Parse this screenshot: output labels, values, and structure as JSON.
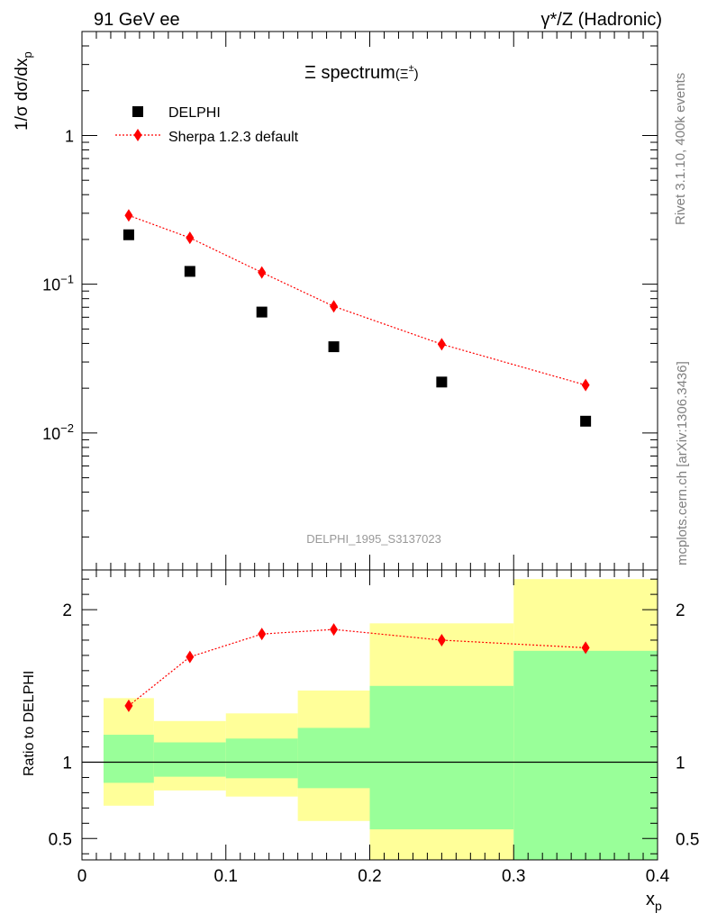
{
  "header": {
    "left": "91 GeV ee",
    "right": "γ*/Z (Hadronic)"
  },
  "side_labels": {
    "rivet": "Rivet 3.1.10,  400k events",
    "mcplots": "mcplots.cern.ch [arXiv:1306.3436]"
  },
  "chart_data": [
    {
      "type": "scatter",
      "title": "Ξ spectrum(Ξ±)",
      "title_main": "Ξ spectrum",
      "title_sub": "(Ξ",
      "title_sup": "±",
      "title_close": ")",
      "ylabel": "1/σ dσ/dx",
      "ylabel_sub": "p",
      "xlabel": "",
      "yscale": "log",
      "ylim": [
        0.0012,
        5
      ],
      "xlim": [
        0,
        0.4
      ],
      "ytick_labels": [
        {
          "value": 1,
          "base": "1",
          "exp": ""
        },
        {
          "value": 0.1,
          "base": "10",
          "exp": "−1"
        },
        {
          "value": 0.01,
          "base": "10",
          "exp": "−2"
        }
      ],
      "legend_position": "top-left",
      "watermark": "DELPHI_1995_S3137023",
      "series": [
        {
          "name": "DELPHI",
          "marker": "square",
          "color": "#000000",
          "points": [
            {
              "x": 0.0325,
              "y": 0.215
            },
            {
              "x": 0.075,
              "y": 0.122
            },
            {
              "x": 0.125,
              "y": 0.065
            },
            {
              "x": 0.175,
              "y": 0.038
            },
            {
              "x": 0.25,
              "y": 0.022
            },
            {
              "x": 0.35,
              "y": 0.012
            }
          ]
        },
        {
          "name": "Sherpa 1.2.3 default",
          "marker": "diamond",
          "line": "dotted",
          "color": "#ff0000",
          "points": [
            {
              "x": 0.0325,
              "y": 0.29
            },
            {
              "x": 0.075,
              "y": 0.205
            },
            {
              "x": 0.125,
              "y": 0.12
            },
            {
              "x": 0.175,
              "y": 0.071
            },
            {
              "x": 0.25,
              "y": 0.0395
            },
            {
              "x": 0.35,
              "y": 0.021
            }
          ]
        }
      ]
    },
    {
      "type": "line",
      "ylabel": "Ratio to DELPHI",
      "xlabel": "x",
      "xlabel_sub": "p",
      "xlim": [
        0,
        0.4
      ],
      "ylim": [
        0.36,
        2.26
      ],
      "xtick_labels": [
        "0",
        "0.1",
        "0.2",
        "0.3",
        "0.4"
      ],
      "ytick_labels": [
        "0.5",
        "1",
        "2"
      ],
      "reference_line": 1,
      "bands": [
        {
          "x_lo": 0.015,
          "x_hi": 0.05,
          "stat_lo": 0.865,
          "stat_hi": 1.18,
          "tot_lo": 0.715,
          "tot_hi": 1.42
        },
        {
          "x_lo": 0.05,
          "x_hi": 0.1,
          "stat_lo": 0.905,
          "stat_hi": 1.13,
          "tot_lo": 0.815,
          "tot_hi": 1.27
        },
        {
          "x_lo": 0.1,
          "x_hi": 0.15,
          "stat_lo": 0.895,
          "stat_hi": 1.155,
          "tot_lo": 0.775,
          "tot_hi": 1.32
        },
        {
          "x_lo": 0.15,
          "x_hi": 0.2,
          "stat_lo": 0.83,
          "stat_hi": 1.225,
          "tot_lo": 0.615,
          "tot_hi": 1.47
        },
        {
          "x_lo": 0.2,
          "x_hi": 0.3,
          "stat_lo": 0.56,
          "stat_hi": 1.5,
          "tot_lo": 0.36,
          "tot_hi": 1.91
        },
        {
          "x_lo": 0.3,
          "x_hi": 0.4,
          "stat_lo": 0.36,
          "stat_hi": 1.73,
          "tot_lo": 0.36,
          "tot_hi": 2.2
        }
      ],
      "series": [
        {
          "name": "Sherpa 1.2.3 default",
          "marker": "diamond",
          "line": "dotted",
          "color": "#ff0000",
          "points": [
            {
              "x": 0.0325,
              "y": 1.37
            },
            {
              "x": 0.075,
              "y": 1.69
            },
            {
              "x": 0.125,
              "y": 1.84
            },
            {
              "x": 0.175,
              "y": 1.87
            },
            {
              "x": 0.25,
              "y": 1.8
            },
            {
              "x": 0.35,
              "y": 1.75
            }
          ]
        }
      ]
    }
  ],
  "colors": {
    "stat_band": "#99ff99",
    "total_band": "#ffff99",
    "mc": "#ff0000",
    "data": "#000000",
    "watermark": "#999999",
    "side_text": "#808080"
  }
}
